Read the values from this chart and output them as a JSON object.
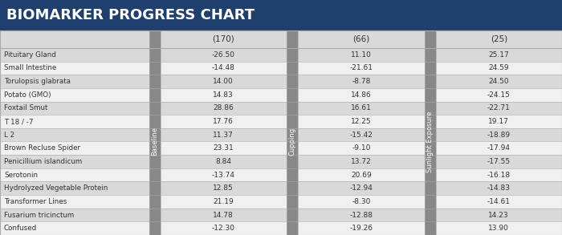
{
  "title": "BIOMARKER PROGRESS CHART",
  "title_bg": "#1f3f6e",
  "title_fg": "#ffffff",
  "col_headers": [
    "(170)",
    "(66)",
    "(25)"
  ],
  "col_labels": [
    "Baseline",
    "Cupping",
    "Sunlight Exposure"
  ],
  "rows": [
    [
      "Pituitary Gland",
      "-26.50",
      "11.10",
      "25.17"
    ],
    [
      "Small Intestine",
      "-14.48",
      "-21.61",
      "24.59"
    ],
    [
      "Torulopsis glabrata",
      "14.00",
      "-8.78",
      "24.50"
    ],
    [
      "Potato (GMO)",
      "14.83",
      "14.86",
      "-24.15"
    ],
    [
      "Foxtail Smut",
      "28.86",
      "16.61",
      "-22.71"
    ],
    [
      "T 18 / -7",
      "17.76",
      "12.25",
      "19.17"
    ],
    [
      "L 2",
      "11.37",
      "-15.42",
      "-18.89"
    ],
    [
      "Brown Recluse Spider",
      "23.31",
      "-9.10",
      "-17.94"
    ],
    [
      "Penicillium islandicum",
      "8.84",
      "13.72",
      "-17.55"
    ],
    [
      "Serotonin",
      "-13.74",
      "20.69",
      "-16.18"
    ],
    [
      "Hydrolyzed Vegetable Protein",
      "12.85",
      "-12.94",
      "-14.83"
    ],
    [
      "Transformer Lines",
      "21.19",
      "-8.30",
      "-14.61"
    ],
    [
      "Fusarium tricinctum",
      "14.78",
      "-12.88",
      "14.23"
    ],
    [
      "Confused",
      "-12.30",
      "-19.26",
      "13.90"
    ]
  ],
  "stripe_color_dark": "#d9d9d9",
  "stripe_color_light": "#f0f0f0",
  "header_bg": "#d9d9d9",
  "border_color": "#aaaaaa",
  "sep_color": "#888888",
  "text_color": "#333333",
  "title_fontsize": 13,
  "header_fontsize": 7.5,
  "data_fontsize": 6.5,
  "label_fontsize": 6.3,
  "sep_label_fontsize": 6.0,
  "fig_width": 7.0,
  "fig_height": 2.93,
  "dpi": 100
}
